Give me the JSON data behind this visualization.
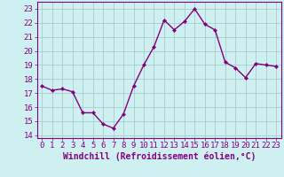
{
  "x": [
    0,
    1,
    2,
    3,
    4,
    5,
    6,
    7,
    8,
    9,
    10,
    11,
    12,
    13,
    14,
    15,
    16,
    17,
    18,
    19,
    20,
    21,
    22,
    23
  ],
  "y": [
    17.5,
    17.2,
    17.3,
    17.1,
    15.6,
    15.6,
    14.8,
    14.5,
    15.5,
    17.5,
    19.0,
    20.3,
    22.2,
    21.5,
    22.1,
    23.0,
    21.9,
    21.5,
    19.2,
    18.8,
    18.1,
    19.1,
    19.0,
    18.9
  ],
  "line_color": "#800080",
  "marker": "D",
  "marker_size": 2.2,
  "line_width": 1.0,
  "bg_color": "#cff0f0",
  "grid_color": "#aacccc",
  "xlabel": "Windchill (Refroidissement éolien,°C)",
  "xlabel_fontsize": 7,
  "yticks": [
    14,
    15,
    16,
    17,
    18,
    19,
    20,
    21,
    22,
    23
  ],
  "xticks": [
    0,
    1,
    2,
    3,
    4,
    5,
    6,
    7,
    8,
    9,
    10,
    11,
    12,
    13,
    14,
    15,
    16,
    17,
    18,
    19,
    20,
    21,
    22,
    23
  ],
  "ylim": [
    13.8,
    23.5
  ],
  "xlim": [
    -0.5,
    23.5
  ],
  "tick_fontsize": 6.5,
  "tick_color": "#800080",
  "spine_color": "#800080"
}
